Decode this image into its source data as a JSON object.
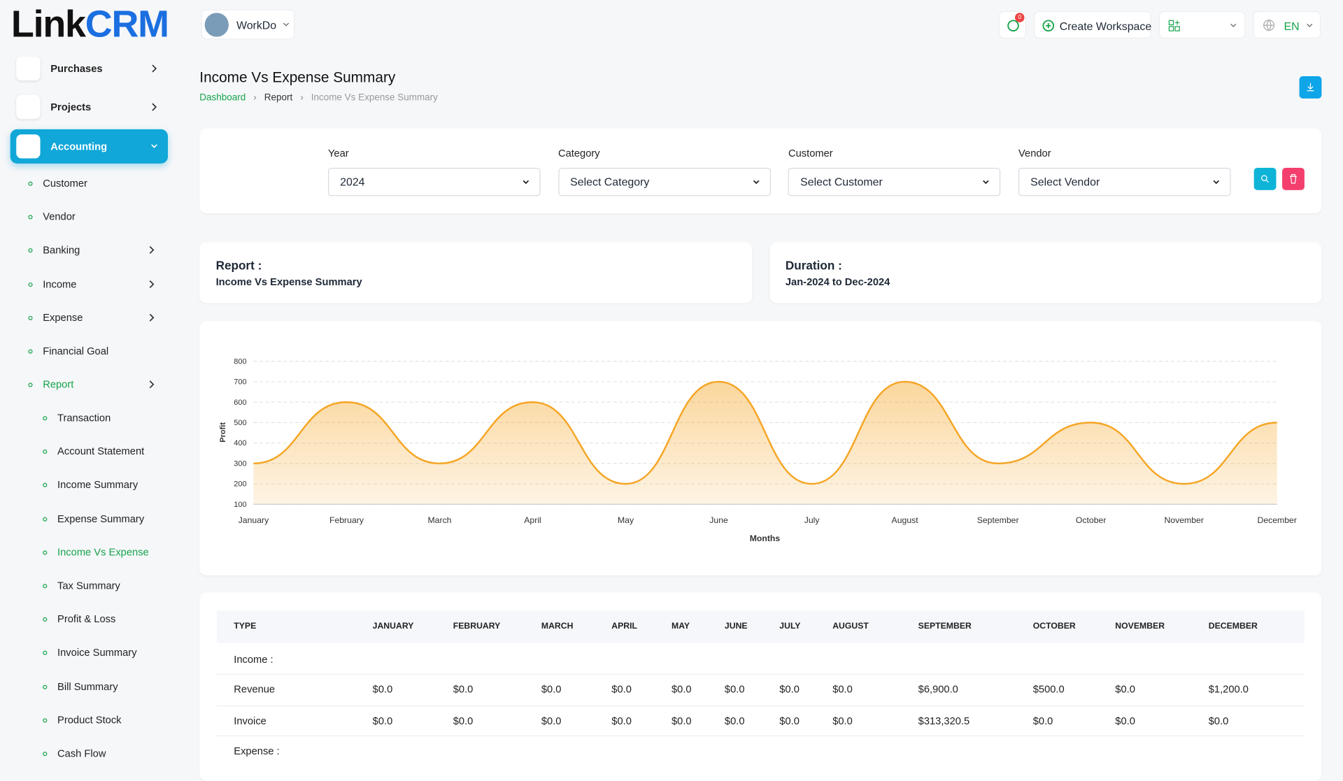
{
  "logo_text": [
    "Link",
    "CRM"
  ],
  "workspace": "WorkDo",
  "header": {
    "notification_count": "0",
    "create_workspace": "Create Workspace",
    "language": "EN"
  },
  "sidebar": {
    "main": [
      "Purchases",
      "Projects",
      "Accounting"
    ],
    "accounting_items": [
      "Customer",
      "Vendor",
      "Banking",
      "Income",
      "Expense",
      "Financial Goal",
      "Report"
    ],
    "report_items": [
      "Transaction",
      "Account Statement",
      "Income Summary",
      "Expense Summary",
      "Income Vs Expense",
      "Tax Summary",
      "Profit & Loss",
      "Invoice Summary",
      "Bill Summary",
      "Product Stock",
      "Cash Flow"
    ]
  },
  "page": {
    "title": "Income Vs Expense Summary",
    "breadcrumb": [
      "Dashboard",
      "Report",
      "Income Vs Expense Summary"
    ]
  },
  "filters": [
    {
      "label": "Year",
      "value": "2024"
    },
    {
      "label": "Category",
      "value": "Select Category"
    },
    {
      "label": "Customer",
      "value": "Select Customer"
    },
    {
      "label": "Vendor",
      "value": "Select Vendor"
    }
  ],
  "report_info": [
    {
      "label": "Report :",
      "value": "Income Vs Expense Summary"
    },
    {
      "label": "Duration :",
      "value": "Jan-2024 to Dec-2024"
    }
  ],
  "chart_data": {
    "type": "area",
    "x_label": "Months",
    "y_label": "Profit",
    "categories": [
      "January",
      "February",
      "March",
      "April",
      "May",
      "June",
      "July",
      "August",
      "September",
      "October",
      "November",
      "December"
    ],
    "values": [
      300,
      600,
      300,
      600,
      200,
      700,
      200,
      700,
      300,
      500,
      200,
      500
    ],
    "color": "#f5a524",
    "ylim": [
      100,
      800
    ],
    "yticks": [
      100,
      200,
      300,
      400,
      500,
      600,
      700,
      800
    ],
    "grid": true
  },
  "table": {
    "headers": [
      "TYPE",
      "JANUARY",
      "FEBRUARY",
      "MARCH",
      "APRIL",
      "MAY",
      "JUNE",
      "JULY",
      "AUGUST",
      "SEPTEMBER",
      "OCTOBER",
      "NOVEMBER",
      "DECEMBER"
    ],
    "rows": [
      [
        "Income :"
      ],
      [
        "Revenue",
        "$0.0",
        "$0.0",
        "$0.0",
        "$0.0",
        "$0.0",
        "$0.0",
        "$0.0",
        "$0.0",
        "$6,900.0",
        "$500.0",
        "$0.0",
        "$1,200.0"
      ],
      [
        "Invoice",
        "$0.0",
        "$0.0",
        "$0.0",
        "$0.0",
        "$0.0",
        "$0.0",
        "$0.0",
        "$0.0",
        "$313,320.5",
        "$0.0",
        "$0.0",
        "$0.0"
      ],
      [
        "Expense :"
      ]
    ]
  }
}
